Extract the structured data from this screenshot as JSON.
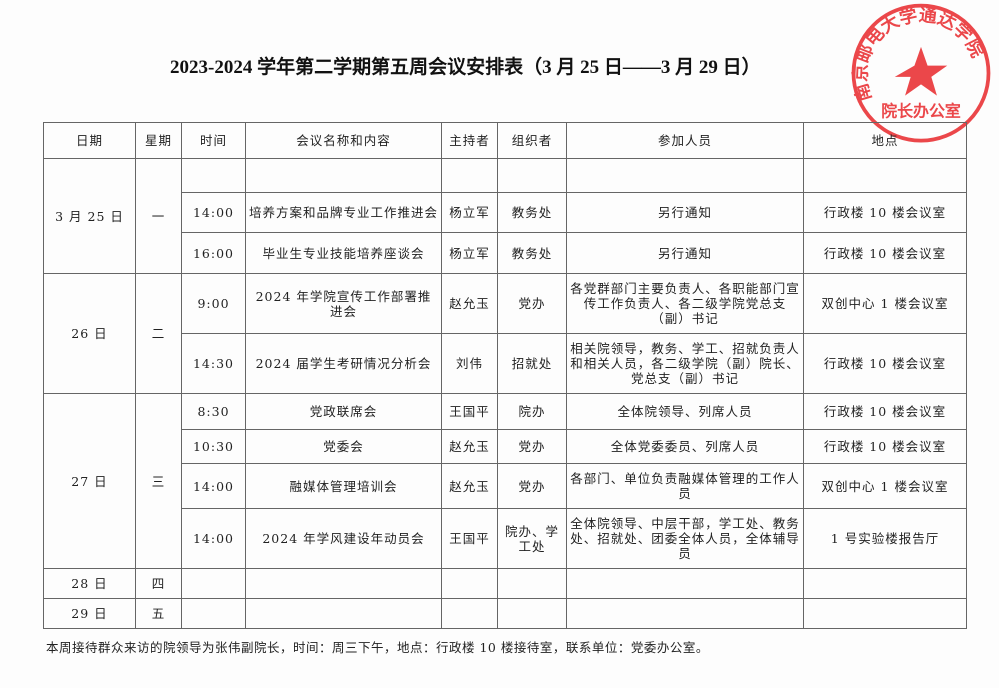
{
  "title": "2023-2024 学年第二学期第五周会议安排表（3 月 25 日——3 月 29 日）",
  "stamp": {
    "outer_text": "南京邮电大学通达学院",
    "inner_text": "院长办公室",
    "color": "#e8282b",
    "icon": "star-icon"
  },
  "headers": [
    "日期",
    "星期",
    "时间",
    "会议名称和内容",
    "主持者",
    "组织者",
    "参加人员",
    "地点"
  ],
  "days": [
    {
      "date": "3 月 25 日",
      "weekday": "一",
      "meetings": [
        {
          "time": "",
          "name": "",
          "host": "",
          "organizer": "",
          "attendees": "",
          "location": ""
        },
        {
          "time": "14:00",
          "name": "培养方案和品牌专业工作推进会",
          "host": "杨立军",
          "organizer": "教务处",
          "attendees": "另行通知",
          "location": "行政楼 10 楼会议室"
        },
        {
          "time": "16:00",
          "name": "毕业生专业技能培养座谈会",
          "host": "杨立军",
          "organizer": "教务处",
          "attendees": "另行通知",
          "location": "行政楼 10 楼会议室"
        }
      ]
    },
    {
      "date": "26 日",
      "weekday": "二",
      "meetings": [
        {
          "time": "9:00",
          "name": "2024 年学院宣传工作部署推进会",
          "host": "赵允玉",
          "organizer": "党办",
          "attendees": "各党群部门主要负责人、各职能部门宣传工作负责人、各二级学院党总支（副）书记",
          "location": "双创中心 1 楼会议室"
        },
        {
          "time": "14:30",
          "name": "2024 届学生考研情况分析会",
          "host": "刘伟",
          "organizer": "招就处",
          "attendees": "相关院领导，教务、学工、招就负责人和相关人员，各二级学院（副）院长、党总支（副）书记",
          "location": "行政楼 10 楼会议室"
        }
      ]
    },
    {
      "date": "27 日",
      "weekday": "三",
      "meetings": [
        {
          "time": "8:30",
          "name": "党政联席会",
          "host": "王国平",
          "organizer": "院办",
          "attendees": "全体院领导、列席人员",
          "location": "行政楼 10 楼会议室"
        },
        {
          "time": "10:30",
          "name": "党委会",
          "host": "赵允玉",
          "organizer": "党办",
          "attendees": "全体党委委员、列席人员",
          "location": "行政楼 10 楼会议室"
        },
        {
          "time": "14:00",
          "name": "融媒体管理培训会",
          "host": "赵允玉",
          "organizer": "党办",
          "attendees": "各部门、单位负责融媒体管理的工作人员",
          "location": "双创中心 1 楼会议室"
        },
        {
          "time": "14:00",
          "name": "2024 年学风建设年动员会",
          "host": "王国平",
          "organizer": "院办、学工处",
          "attendees": "全体院领导、中层干部，学工处、教务处、招就处、团委全体人员，全体辅导员",
          "location": "1 号实验楼报告厅"
        }
      ]
    },
    {
      "date": "28 日",
      "weekday": "四",
      "meetings": [
        {
          "time": "",
          "name": "",
          "host": "",
          "organizer": "",
          "attendees": "",
          "location": ""
        }
      ]
    },
    {
      "date": "29 日",
      "weekday": "五",
      "meetings": [
        {
          "time": "",
          "name": "",
          "host": "",
          "organizer": "",
          "attendees": "",
          "location": ""
        }
      ]
    }
  ],
  "footer": "本周接待群众来访的院领导为张伟副院长，时间：周三下午，地点：行政楼 10 楼接待室，联系单位：党委办公室。"
}
